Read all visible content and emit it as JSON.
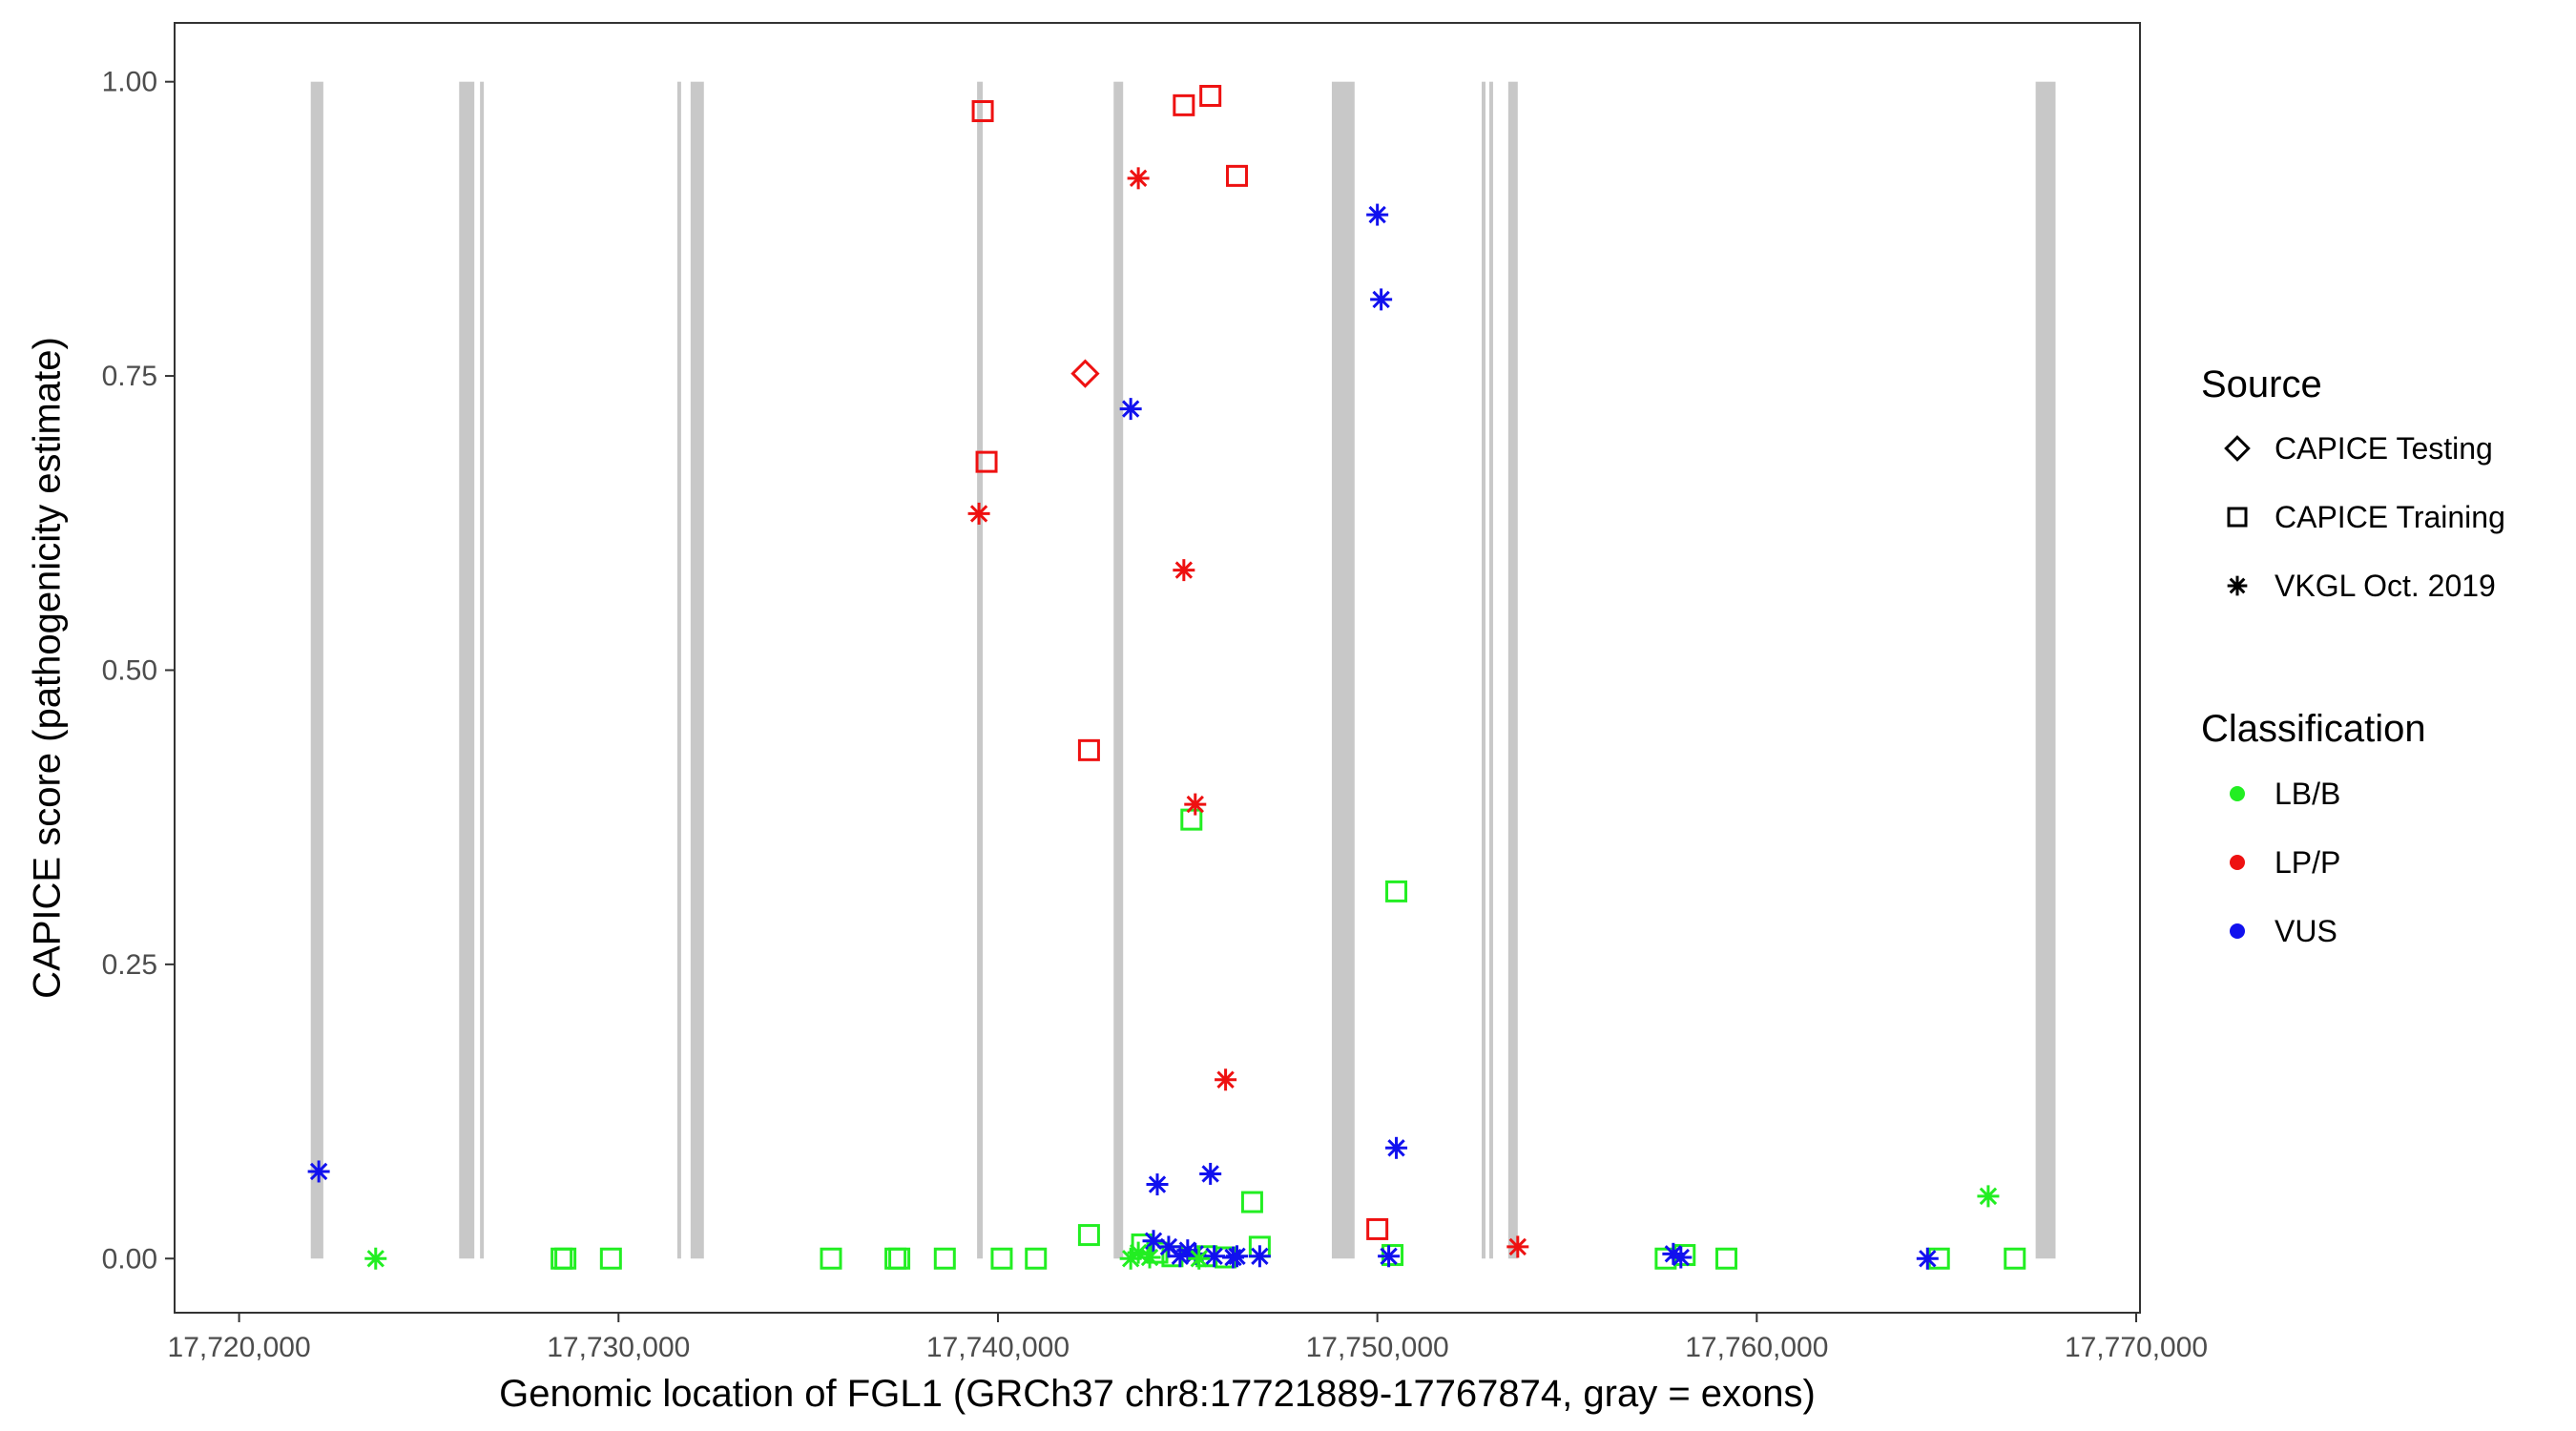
{
  "chart_data": {
    "type": "scatter",
    "title": "",
    "xlabel": "Genomic location of FGL1 (GRCh37 chr8:17721889-17767874, gray = exons)",
    "ylabel": "CAPICE score (pathogenicity estimate)",
    "xlim": [
      17718300,
      17770100
    ],
    "ylim": [
      -0.046,
      1.05
    ],
    "x_ticks": [
      17720000,
      17730000,
      17740000,
      17750000,
      17760000,
      17770000
    ],
    "x_tick_labels": [
      "17,720,000",
      "17,730,000",
      "17,740,000",
      "17,750,000",
      "17,760,000",
      "17,770,000"
    ],
    "y_ticks": [
      0,
      0.25,
      0.5,
      0.75,
      1.0
    ],
    "y_tick_labels": [
      "0.00",
      "0.25",
      "0.50",
      "0.75",
      "1.00"
    ],
    "grid": false,
    "exon_color": "#c8c8c8",
    "exons": [
      [
        17721889,
        17722220
      ],
      [
        17725800,
        17726200
      ],
      [
        17726350,
        17726450
      ],
      [
        17731550,
        17731650
      ],
      [
        17731900,
        17732250
      ],
      [
        17739450,
        17739600
      ],
      [
        17743050,
        17743300
      ],
      [
        17748800,
        17749400
      ],
      [
        17752750,
        17752850
      ],
      [
        17752950,
        17753050
      ],
      [
        17753450,
        17753700
      ],
      [
        17767350,
        17767874
      ]
    ],
    "legend": {
      "placement": "right",
      "source_title": "Source",
      "source_items": [
        {
          "label": "CAPICE Testing",
          "shape": "diamond"
        },
        {
          "label": "CAPICE Training",
          "shape": "square"
        },
        {
          "label": "VKGL Oct. 2019",
          "shape": "asterisk"
        }
      ],
      "class_title": "Classification",
      "class_items": [
        {
          "label": "LB/B",
          "color": "#22ee22"
        },
        {
          "label": "LP/P",
          "color": "#ee1111"
        },
        {
          "label": "VUS",
          "color": "#1111ee"
        }
      ]
    },
    "points": [
      {
        "x": 17742300,
        "y": 0.752,
        "source": "diamond",
        "cls": "LP/P"
      },
      {
        "x": 17739600,
        "y": 0.975,
        "source": "square",
        "cls": "LP/P"
      },
      {
        "x": 17744900,
        "y": 0.98,
        "source": "square",
        "cls": "LP/P"
      },
      {
        "x": 17745600,
        "y": 0.988,
        "source": "square",
        "cls": "LP/P"
      },
      {
        "x": 17746300,
        "y": 0.92,
        "source": "square",
        "cls": "LP/P"
      },
      {
        "x": 17739700,
        "y": 0.677,
        "source": "square",
        "cls": "LP/P"
      },
      {
        "x": 17742400,
        "y": 0.432,
        "source": "square",
        "cls": "LP/P"
      },
      {
        "x": 17750000,
        "y": 0.025,
        "source": "square",
        "cls": "LP/P"
      },
      {
        "x": 17728500,
        "y": 0.0,
        "source": "square",
        "cls": "LB/B"
      },
      {
        "x": 17728600,
        "y": 0.0,
        "source": "square",
        "cls": "LB/B"
      },
      {
        "x": 17729800,
        "y": 0.0,
        "source": "square",
        "cls": "LB/B"
      },
      {
        "x": 17735600,
        "y": 0.0,
        "source": "square",
        "cls": "LB/B"
      },
      {
        "x": 17737300,
        "y": 0.0,
        "source": "square",
        "cls": "LB/B"
      },
      {
        "x": 17737400,
        "y": 0.0,
        "source": "square",
        "cls": "LB/B"
      },
      {
        "x": 17738600,
        "y": 0.0,
        "source": "square",
        "cls": "LB/B"
      },
      {
        "x": 17740100,
        "y": 0.0,
        "source": "square",
        "cls": "LB/B"
      },
      {
        "x": 17741000,
        "y": 0.0,
        "source": "square",
        "cls": "LB/B"
      },
      {
        "x": 17742400,
        "y": 0.02,
        "source": "square",
        "cls": "LB/B"
      },
      {
        "x": 17743800,
        "y": 0.012,
        "source": "square",
        "cls": "LB/B"
      },
      {
        "x": 17744200,
        "y": 0.005,
        "source": "square",
        "cls": "LB/B"
      },
      {
        "x": 17744600,
        "y": 0.002,
        "source": "square",
        "cls": "LB/B"
      },
      {
        "x": 17745100,
        "y": 0.373,
        "source": "square",
        "cls": "LB/B"
      },
      {
        "x": 17745500,
        "y": 0.002,
        "source": "square",
        "cls": "LB/B"
      },
      {
        "x": 17746000,
        "y": 0.001,
        "source": "square",
        "cls": "LB/B"
      },
      {
        "x": 17746700,
        "y": 0.048,
        "source": "square",
        "cls": "LB/B"
      },
      {
        "x": 17746900,
        "y": 0.01,
        "source": "square",
        "cls": "LB/B"
      },
      {
        "x": 17750500,
        "y": 0.312,
        "source": "square",
        "cls": "LB/B"
      },
      {
        "x": 17750400,
        "y": 0.003,
        "source": "square",
        "cls": "LB/B"
      },
      {
        "x": 17757600,
        "y": 0.0,
        "source": "square",
        "cls": "LB/B"
      },
      {
        "x": 17758100,
        "y": 0.003,
        "source": "square",
        "cls": "LB/B"
      },
      {
        "x": 17759200,
        "y": 0.0,
        "source": "square",
        "cls": "LB/B"
      },
      {
        "x": 17764800,
        "y": 0.0,
        "source": "square",
        "cls": "LB/B"
      },
      {
        "x": 17766800,
        "y": 0.0,
        "source": "square",
        "cls": "LB/B"
      },
      {
        "x": 17743700,
        "y": 0.918,
        "source": "asterisk",
        "cls": "LP/P"
      },
      {
        "x": 17739500,
        "y": 0.633,
        "source": "asterisk",
        "cls": "LP/P"
      },
      {
        "x": 17744900,
        "y": 0.585,
        "source": "asterisk",
        "cls": "LP/P"
      },
      {
        "x": 17745200,
        "y": 0.386,
        "source": "asterisk",
        "cls": "LP/P"
      },
      {
        "x": 17746000,
        "y": 0.152,
        "source": "asterisk",
        "cls": "LP/P"
      },
      {
        "x": 17753700,
        "y": 0.01,
        "source": "asterisk",
        "cls": "LP/P"
      },
      {
        "x": 17722100,
        "y": 0.074,
        "source": "asterisk",
        "cls": "VUS"
      },
      {
        "x": 17743500,
        "y": 0.722,
        "source": "asterisk",
        "cls": "VUS"
      },
      {
        "x": 17744200,
        "y": 0.063,
        "source": "asterisk",
        "cls": "VUS"
      },
      {
        "x": 17745600,
        "y": 0.072,
        "source": "asterisk",
        "cls": "VUS"
      },
      {
        "x": 17744100,
        "y": 0.015,
        "source": "asterisk",
        "cls": "VUS"
      },
      {
        "x": 17744500,
        "y": 0.01,
        "source": "asterisk",
        "cls": "VUS"
      },
      {
        "x": 17744800,
        "y": 0.002,
        "source": "asterisk",
        "cls": "VUS"
      },
      {
        "x": 17745000,
        "y": 0.007,
        "source": "asterisk",
        "cls": "VUS"
      },
      {
        "x": 17745200,
        "y": 0.004,
        "source": "asterisk",
        "cls": "VUS"
      },
      {
        "x": 17745700,
        "y": 0.002,
        "source": "asterisk",
        "cls": "VUS"
      },
      {
        "x": 17746200,
        "y": 0.001,
        "source": "asterisk",
        "cls": "VUS"
      },
      {
        "x": 17746300,
        "y": 0.002,
        "source": "asterisk",
        "cls": "VUS"
      },
      {
        "x": 17746900,
        "y": 0.002,
        "source": "asterisk",
        "cls": "VUS"
      },
      {
        "x": 17750000,
        "y": 0.887,
        "source": "asterisk",
        "cls": "VUS"
      },
      {
        "x": 17750100,
        "y": 0.815,
        "source": "asterisk",
        "cls": "VUS"
      },
      {
        "x": 17750500,
        "y": 0.094,
        "source": "asterisk",
        "cls": "VUS"
      },
      {
        "x": 17750300,
        "y": 0.002,
        "source": "asterisk",
        "cls": "VUS"
      },
      {
        "x": 17757800,
        "y": 0.004,
        "source": "asterisk",
        "cls": "VUS"
      },
      {
        "x": 17758000,
        "y": 0.001,
        "source": "asterisk",
        "cls": "VUS"
      },
      {
        "x": 17764500,
        "y": 0.0,
        "source": "asterisk",
        "cls": "VUS"
      },
      {
        "x": 17723600,
        "y": 0.0,
        "source": "asterisk",
        "cls": "LB/B"
      },
      {
        "x": 17743500,
        "y": 0.0,
        "source": "asterisk",
        "cls": "LB/B"
      },
      {
        "x": 17743700,
        "y": 0.005,
        "source": "asterisk",
        "cls": "LB/B"
      },
      {
        "x": 17744000,
        "y": 0.001,
        "source": "asterisk",
        "cls": "LB/B"
      },
      {
        "x": 17745300,
        "y": 0.0,
        "source": "asterisk",
        "cls": "LB/B"
      },
      {
        "x": 17766100,
        "y": 0.053,
        "source": "asterisk",
        "cls": "LB/B"
      }
    ]
  }
}
